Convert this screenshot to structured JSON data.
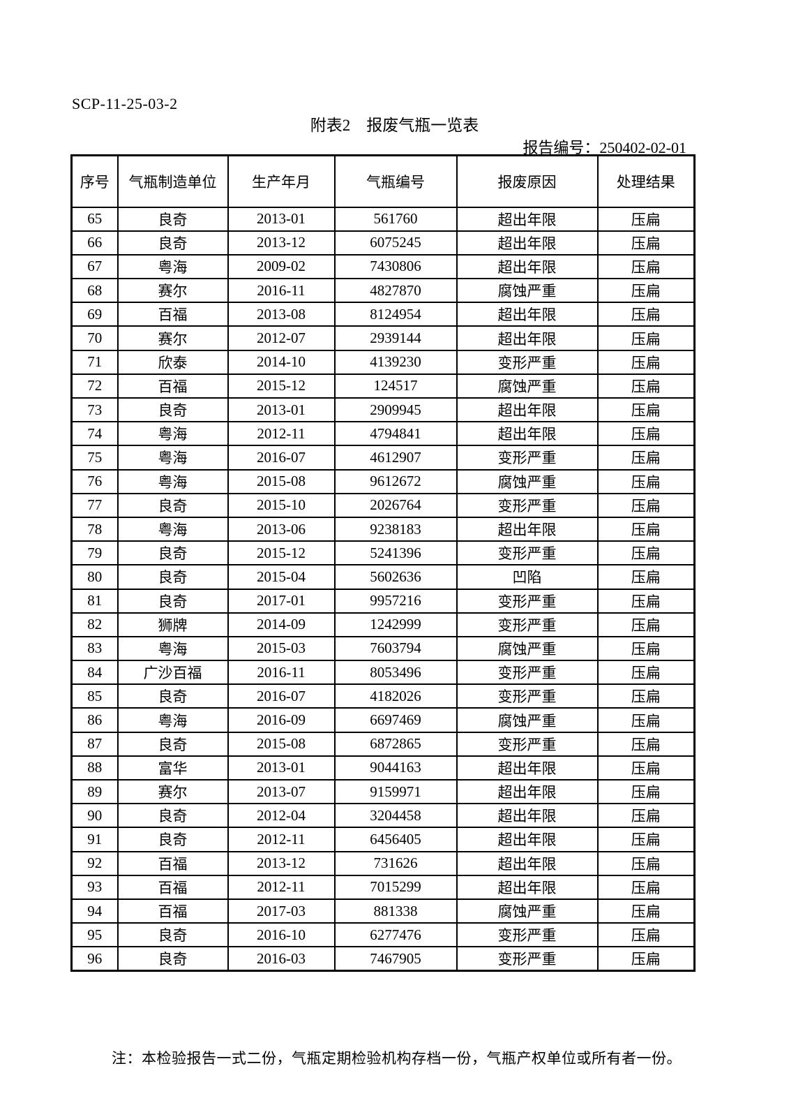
{
  "page": {
    "doc_code": "SCP-11-25-03-2",
    "title": "附表2　报废气瓶一览表",
    "report_no_label": "报告编号：",
    "report_no_value": "250402-02-01",
    "note": "注：本检验报告一式二份，气瓶定期检验机构存档一份，气瓶产权单位或所有者一份。"
  },
  "colors": {
    "background": "#ffffff",
    "text": "#000000",
    "border": "#000000"
  },
  "table": {
    "columns": [
      {
        "key": "seq",
        "label": "序号"
      },
      {
        "key": "manufacturer",
        "label": "气瓶制造单位"
      },
      {
        "key": "production_date",
        "label": "生产年月"
      },
      {
        "key": "cylinder_no",
        "label": "气瓶编号"
      },
      {
        "key": "scrap_reason",
        "label": "报废原因"
      },
      {
        "key": "result",
        "label": "处理结果"
      }
    ],
    "rows": [
      [
        "65",
        "良奇",
        "2013-01",
        "561760",
        "超出年限",
        "压扁"
      ],
      [
        "66",
        "良奇",
        "2013-12",
        "6075245",
        "超出年限",
        "压扁"
      ],
      [
        "67",
        "粤海",
        "2009-02",
        "7430806",
        "超出年限",
        "压扁"
      ],
      [
        "68",
        "赛尔",
        "2016-11",
        "4827870",
        "腐蚀严重",
        "压扁"
      ],
      [
        "69",
        "百福",
        "2013-08",
        "8124954",
        "超出年限",
        "压扁"
      ],
      [
        "70",
        "赛尔",
        "2012-07",
        "2939144",
        "超出年限",
        "压扁"
      ],
      [
        "71",
        "欣泰",
        "2014-10",
        "4139230",
        "变形严重",
        "压扁"
      ],
      [
        "72",
        "百福",
        "2015-12",
        "124517",
        "腐蚀严重",
        "压扁"
      ],
      [
        "73",
        "良奇",
        "2013-01",
        "2909945",
        "超出年限",
        "压扁"
      ],
      [
        "74",
        "粤海",
        "2012-11",
        "4794841",
        "超出年限",
        "压扁"
      ],
      [
        "75",
        "粤海",
        "2016-07",
        "4612907",
        "变形严重",
        "压扁"
      ],
      [
        "76",
        "粤海",
        "2015-08",
        "9612672",
        "腐蚀严重",
        "压扁"
      ],
      [
        "77",
        "良奇",
        "2015-10",
        "2026764",
        "变形严重",
        "压扁"
      ],
      [
        "78",
        "粤海",
        "2013-06",
        "9238183",
        "超出年限",
        "压扁"
      ],
      [
        "79",
        "良奇",
        "2015-12",
        "5241396",
        "变形严重",
        "压扁"
      ],
      [
        "80",
        "良奇",
        "2015-04",
        "5602636",
        "凹陷",
        "压扁"
      ],
      [
        "81",
        "良奇",
        "2017-01",
        "9957216",
        "变形严重",
        "压扁"
      ],
      [
        "82",
        "狮牌",
        "2014-09",
        "1242999",
        "变形严重",
        "压扁"
      ],
      [
        "83",
        "粤海",
        "2015-03",
        "7603794",
        "腐蚀严重",
        "压扁"
      ],
      [
        "84",
        "广沙百福",
        "2016-11",
        "8053496",
        "变形严重",
        "压扁"
      ],
      [
        "85",
        "良奇",
        "2016-07",
        "4182026",
        "变形严重",
        "压扁"
      ],
      [
        "86",
        "粤海",
        "2016-09",
        "6697469",
        "腐蚀严重",
        "压扁"
      ],
      [
        "87",
        "良奇",
        "2015-08",
        "6872865",
        "变形严重",
        "压扁"
      ],
      [
        "88",
        "富华",
        "2013-01",
        "9044163",
        "超出年限",
        "压扁"
      ],
      [
        "89",
        "赛尔",
        "2013-07",
        "9159971",
        "超出年限",
        "压扁"
      ],
      [
        "90",
        "良奇",
        "2012-04",
        "3204458",
        "超出年限",
        "压扁"
      ],
      [
        "91",
        "良奇",
        "2012-11",
        "6456405",
        "超出年限",
        "压扁"
      ],
      [
        "92",
        "百福",
        "2013-12",
        "731626",
        "超出年限",
        "压扁"
      ],
      [
        "93",
        "百福",
        "2012-11",
        "7015299",
        "超出年限",
        "压扁"
      ],
      [
        "94",
        "百福",
        "2017-03",
        "881338",
        "腐蚀严重",
        "压扁"
      ],
      [
        "95",
        "良奇",
        "2016-10",
        "6277476",
        "变形严重",
        "压扁"
      ],
      [
        "96",
        "良奇",
        "2016-03",
        "7467905",
        "变形严重",
        "压扁"
      ]
    ]
  }
}
